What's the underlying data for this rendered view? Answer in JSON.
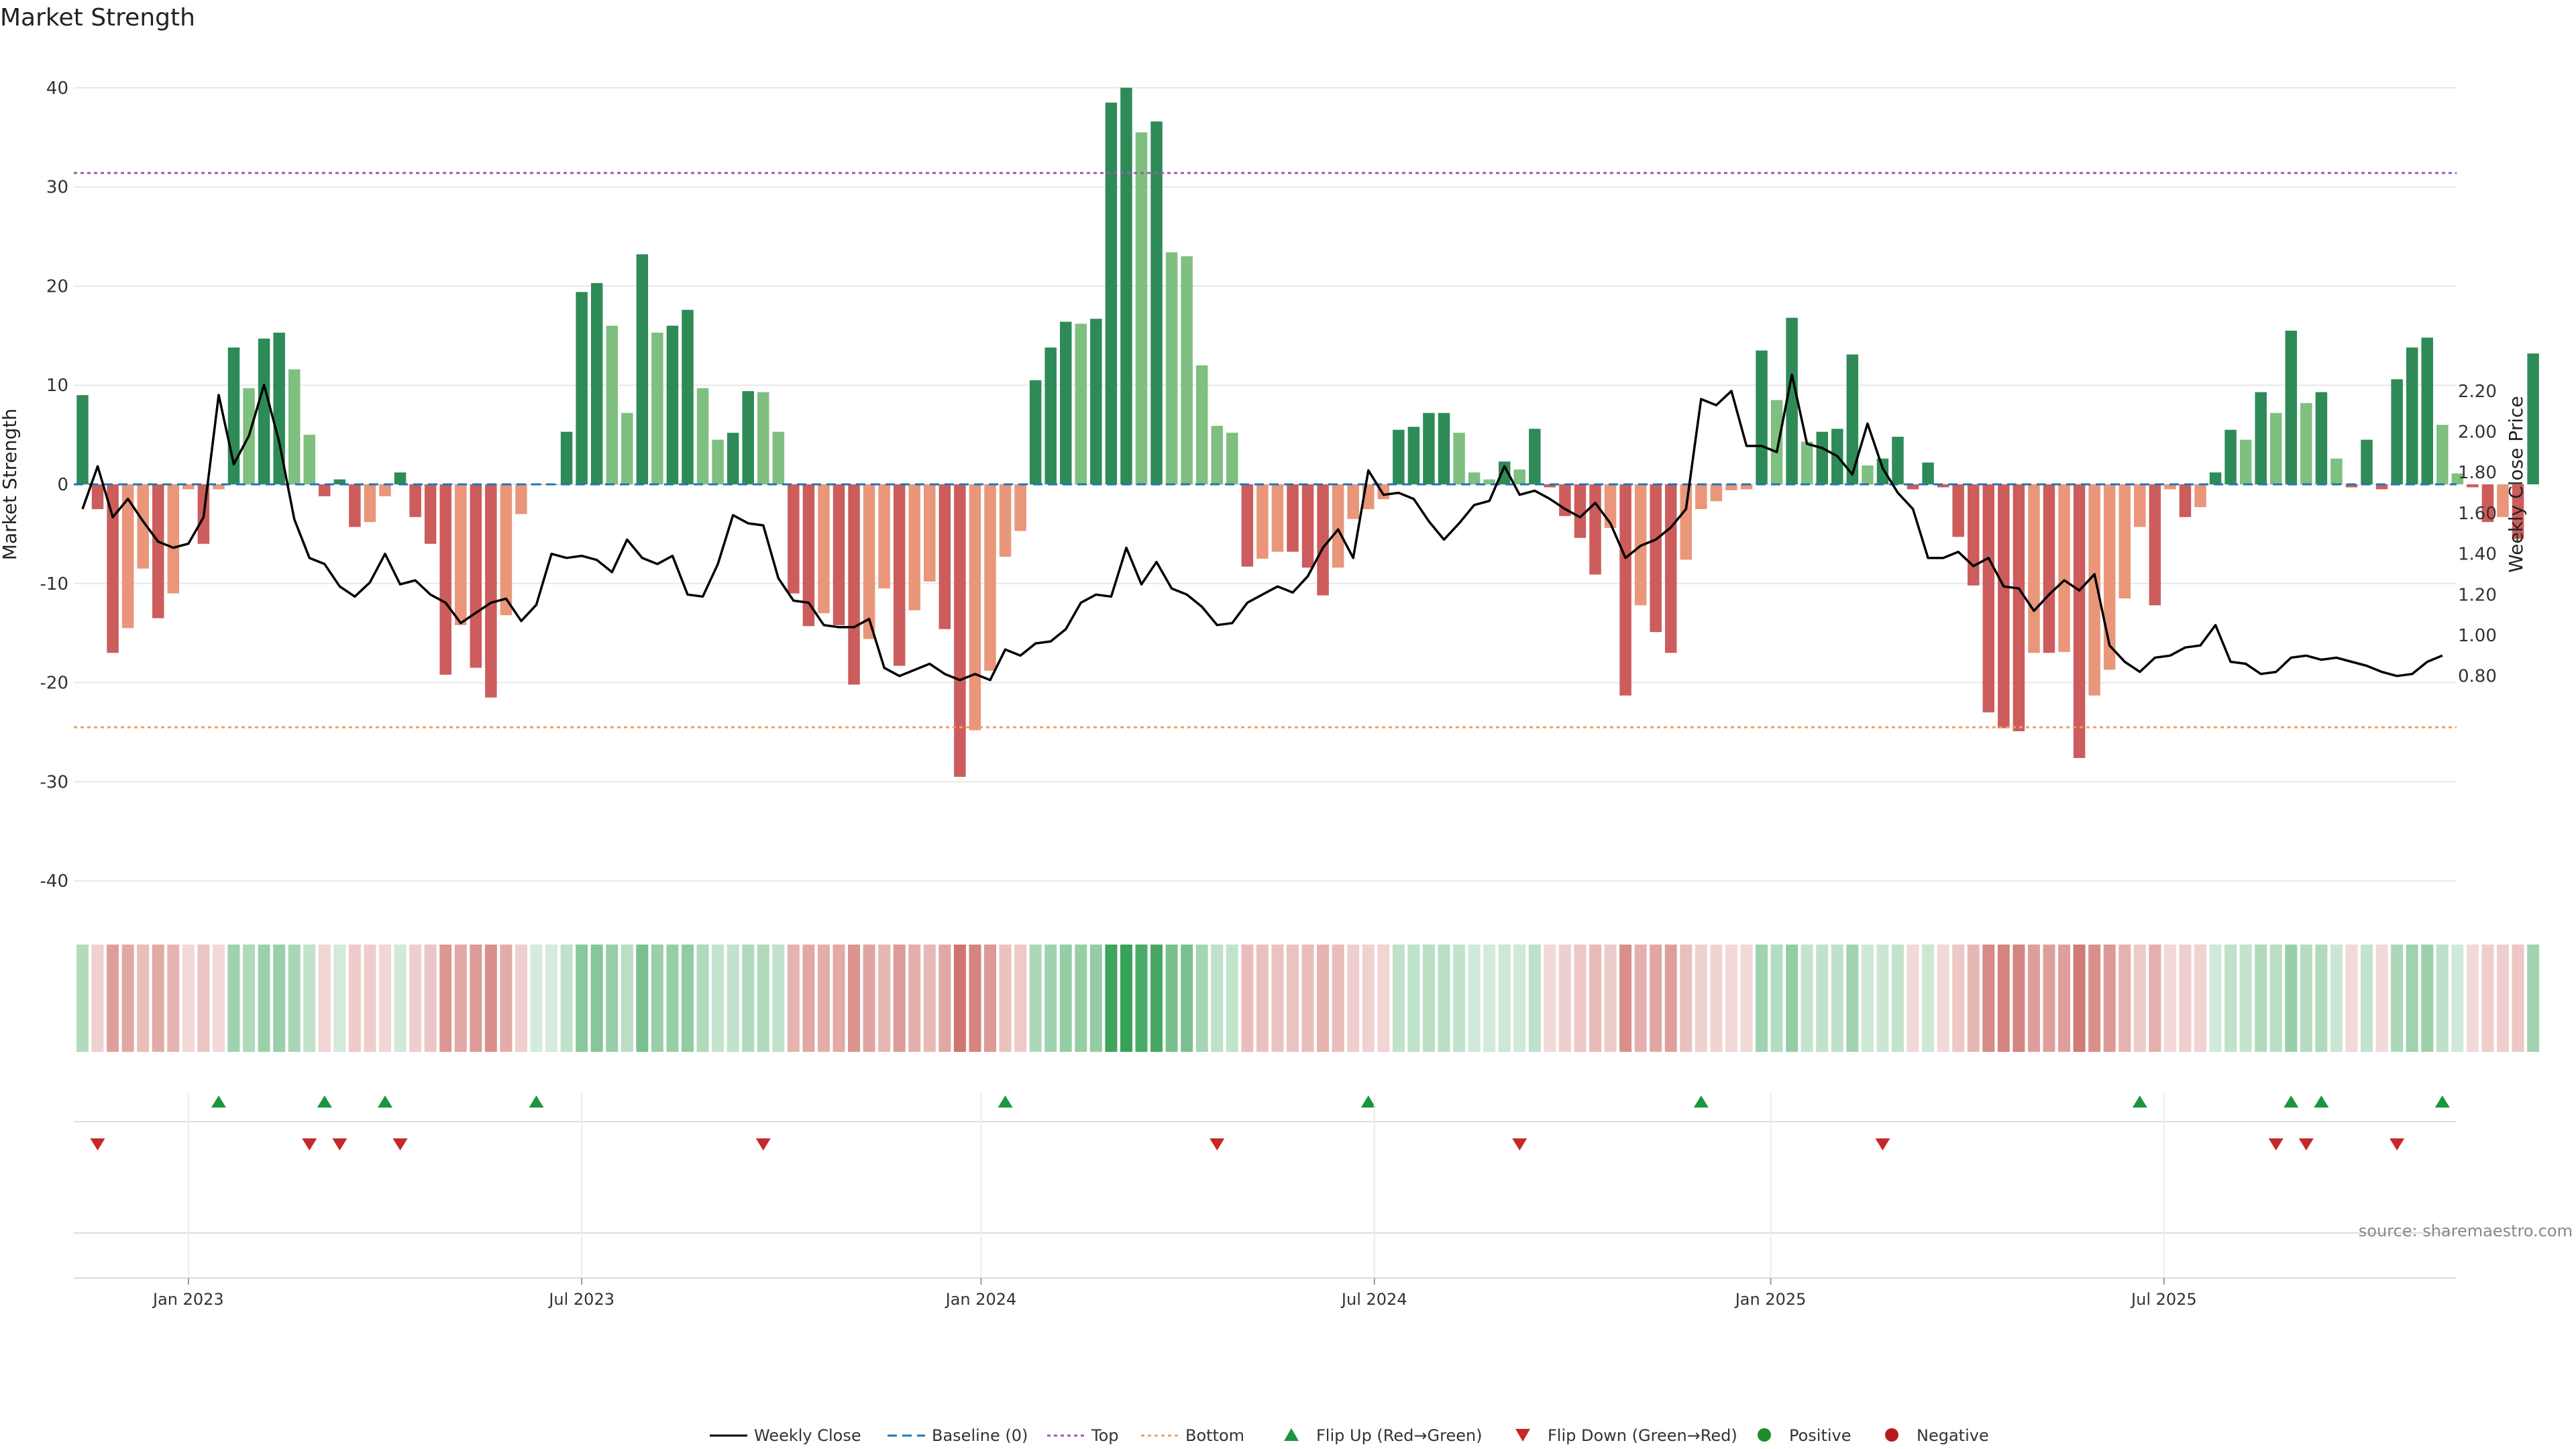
{
  "title": "Market Strength",
  "source": "source: sharemaestro.com",
  "colors": {
    "pos_strong": "#2e8b57",
    "pos_weak": "#7fbf7f",
    "neg_strong": "#cd5c5c",
    "neg_weak": "#e9967a",
    "price_line": "#000000",
    "baseline": "#1f77b4",
    "top": "#9b59b6",
    "bottom": "#f0a060",
    "flip_up": "#1a9641",
    "flip_down": "#c62828",
    "positive": "#1f8b2b",
    "negative": "#b71c1c",
    "grid": "#e8e8e8"
  },
  "chart_data": {
    "type": "bar",
    "x_start": "2022-11-14",
    "interval": "weekly",
    "left_axis": {
      "label": "Market Strength",
      "ylim": [
        -43,
        43
      ],
      "ticks": [
        -40,
        -30,
        -20,
        -10,
        0,
        10,
        20,
        30,
        40
      ]
    },
    "right_axis": {
      "label": "Weekly Close Price",
      "ylim": [
        0.7,
        2.3
      ],
      "ticks": [
        "0.80",
        "1.00",
        "1.20",
        "1.40",
        "1.60",
        "1.80",
        "2.00",
        "2.20"
      ]
    },
    "x_ticks": [
      {
        "label": "Jan 2023",
        "index": 7
      },
      {
        "label": "Jul 2023",
        "index": 33
      },
      {
        "label": "Jan 2024",
        "index": 59.4
      },
      {
        "label": "Jul 2024",
        "index": 85.4
      },
      {
        "label": "Jan 2025",
        "index": 111.6
      },
      {
        "label": "Jul 2025",
        "index": 137.6
      }
    ],
    "top_level": 31.4,
    "bottom_level": -24.5,
    "strength": [
      9,
      -2.5,
      -17,
      -14.5,
      -8.5,
      -13.5,
      -11,
      -0.5,
      -6,
      -0.5,
      13.8,
      9.7,
      14.7,
      15.3,
      11.6,
      5,
      -1.2,
      0.5,
      -4.3,
      -3.8,
      -1.2,
      1.2,
      -3.3,
      -6,
      -19.2,
      -14.2,
      -18.5,
      -21.5,
      -13.2,
      -3,
      0,
      0,
      5.3,
      19.4,
      20.3,
      16,
      7.2,
      23.2,
      15.3,
      16,
      17.6,
      9.7,
      4.5,
      5.2,
      9.4,
      9.3,
      5.3,
      -11,
      -14.3,
      -13,
      -14.2,
      -20.2,
      -15.6,
      -10.5,
      -18.3,
      -12.7,
      -9.8,
      -14.6,
      -29.5,
      -24.8,
      -18.8,
      -7.3,
      -4.7,
      10.5,
      13.8,
      16.4,
      16.2,
      16.7,
      38.5,
      40,
      35.5,
      36.6,
      23.4,
      23,
      12,
      5.9,
      5.2,
      -8.3,
      -7.5,
      -6.8,
      -6.8,
      -8.4,
      -11.2,
      -8.4,
      -3.5,
      -2.5,
      -1.5,
      5.5,
      5.8,
      7.2,
      7.2,
      5.2,
      1.2,
      0.5,
      2.3,
      1.5,
      5.6,
      -0.3,
      -3.2,
      -5.4,
      -9.1,
      -4.4,
      -21.3,
      -12.2,
      -14.9,
      -17,
      -7.6,
      -2.5,
      -1.7,
      -0.6,
      -0.5,
      13.5,
      8.5,
      16.8,
      4.3,
      5.3,
      5.6,
      13.1,
      1.9,
      2.6,
      4.8,
      -0.5,
      2.2,
      -0.3,
      -5.3,
      -10.2,
      -23,
      -24.6,
      -24.9,
      -17,
      -17,
      -16.9,
      -27.6,
      -21.3,
      -18.7,
      -11.5,
      -4.3,
      -12.2,
      -0.5,
      -3.3,
      -2.3,
      1.2,
      5.5,
      4.5,
      9.3,
      7.2,
      15.5,
      8.2,
      9.3,
      2.6,
      -0.3,
      4.5,
      -0.5,
      10.6,
      13.8,
      14.8,
      6,
      1.1,
      -0.3,
      -3.8,
      -3.3,
      -5.5,
      13.2
    ],
    "close": [
      1.62,
      1.83,
      1.58,
      1.67,
      1.56,
      1.46,
      1.43,
      1.45,
      1.58,
      2.18,
      1.84,
      1.98,
      2.23,
      1.95,
      1.57,
      1.38,
      1.35,
      1.24,
      1.19,
      1.26,
      1.4,
      1.25,
      1.27,
      1.2,
      1.16,
      1.06,
      1.11,
      1.16,
      1.18,
      1.07,
      1.15,
      1.4,
      1.38,
      1.39,
      1.37,
      1.31,
      1.47,
      1.38,
      1.35,
      1.39,
      1.2,
      1.19,
      1.35,
      1.59,
      1.55,
      1.54,
      1.28,
      1.17,
      1.16,
      1.05,
      1.04,
      1.04,
      1.08,
      0.84,
      0.8,
      0.83,
      0.86,
      0.81,
      0.78,
      0.81,
      0.78,
      0.93,
      0.9,
      0.96,
      0.97,
      1.03,
      1.16,
      1.2,
      1.19,
      1.43,
      1.25,
      1.36,
      1.23,
      1.2,
      1.14,
      1.05,
      1.06,
      1.16,
      1.2,
      1.24,
      1.21,
      1.29,
      1.43,
      1.52,
      1.38,
      1.81,
      1.69,
      1.7,
      1.67,
      1.56,
      1.47,
      1.55,
      1.64,
      1.66,
      1.83,
      1.69,
      1.71,
      1.67,
      1.62,
      1.58,
      1.65,
      1.55,
      1.38,
      1.44,
      1.47,
      1.53,
      1.62,
      2.16,
      2.13,
      2.2,
      1.93,
      1.93,
      1.9,
      2.28,
      1.94,
      1.92,
      1.88,
      1.79,
      2.04,
      1.82,
      1.7,
      1.62,
      1.38,
      1.38,
      1.41,
      1.34,
      1.38,
      1.24,
      1.23,
      1.12,
      1.2,
      1.27,
      1.22,
      1.3,
      0.95,
      0.87,
      0.82,
      0.89,
      0.9,
      0.94,
      0.95,
      1.05,
      0.87,
      0.86,
      0.81,
      0.82,
      0.89,
      0.9,
      0.88,
      0.89,
      0.87,
      0.85,
      0.82,
      0.8,
      0.81,
      0.87,
      0.9
    ],
    "flip_up_indices": [
      9,
      16,
      20,
      30,
      61,
      85,
      107,
      136,
      146,
      148,
      156
    ],
    "flip_down_indices": [
      1,
      15,
      17,
      21,
      45,
      75,
      95,
      119,
      145,
      147,
      153
    ],
    "legend": [
      "Weekly Close",
      "Baseline (0)",
      "Top",
      "Bottom",
      "Flip Up (Red→Green)",
      "Flip Down (Green→Red)",
      "Positive",
      "Negative"
    ]
  }
}
